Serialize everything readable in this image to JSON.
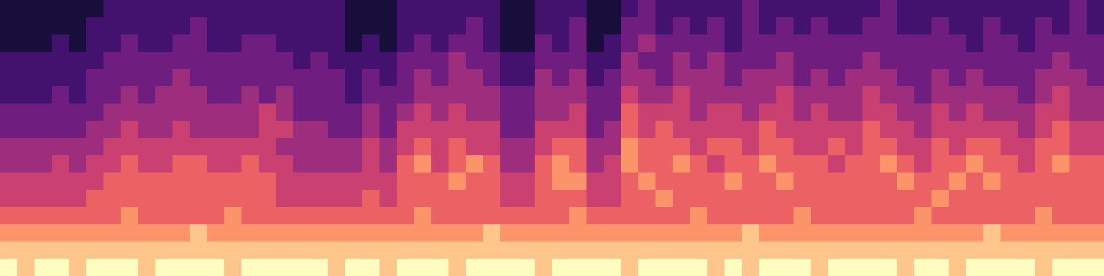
{
  "chart_data": {
    "type": "heatmap",
    "tick_labels": false,
    "color_range": [
      0,
      9
    ],
    "cells": [
      [
        1,
        1,
        1,
        1,
        1,
        1,
        2,
        2,
        2,
        2,
        2,
        2,
        2,
        2,
        2,
        2,
        2,
        2,
        2,
        2,
        1,
        1,
        1,
        2,
        2,
        2,
        2,
        2,
        2,
        1,
        1,
        2,
        2,
        2,
        1,
        1,
        2,
        3,
        2,
        2,
        2,
        2,
        2,
        3,
        2,
        2,
        2,
        2,
        2,
        2,
        2,
        3,
        2,
        2,
        2,
        2,
        2,
        2,
        2,
        2,
        2,
        2,
        3,
        2
      ],
      [
        1,
        1,
        1,
        1,
        1,
        2,
        2,
        2,
        2,
        2,
        2,
        3,
        2,
        2,
        2,
        2,
        2,
        2,
        2,
        2,
        1,
        1,
        1,
        2,
        2,
        2,
        2,
        3,
        2,
        1,
        1,
        2,
        2,
        3,
        1,
        1,
        3,
        3,
        2,
        3,
        2,
        3,
        2,
        3,
        2,
        3,
        2,
        3,
        2,
        2,
        3,
        3,
        2,
        2,
        3,
        2,
        2,
        3,
        2,
        2,
        3,
        2,
        3,
        2
      ],
      [
        1,
        1,
        1,
        2,
        1,
        2,
        2,
        3,
        2,
        2,
        3,
        3,
        2,
        2,
        3,
        3,
        2,
        2,
        2,
        2,
        1,
        2,
        1,
        2,
        3,
        2,
        3,
        3,
        2,
        1,
        1,
        3,
        2,
        3,
        1,
        2,
        3,
        4,
        3,
        3,
        3,
        3,
        2,
        3,
        3,
        3,
        3,
        3,
        3,
        3,
        3,
        3,
        3,
        3,
        3,
        3,
        2,
        3,
        3,
        2,
        3,
        3,
        3,
        3
      ],
      [
        2,
        2,
        2,
        2,
        2,
        2,
        3,
        3,
        3,
        3,
        3,
        3,
        3,
        3,
        3,
        3,
        3,
        2,
        3,
        2,
        2,
        2,
        2,
        3,
        3,
        3,
        4,
        3,
        3,
        2,
        2,
        3,
        3,
        3,
        2,
        2,
        4,
        3,
        3,
        4,
        3,
        4,
        3,
        3,
        3,
        4,
        3,
        3,
        3,
        3,
        4,
        3,
        3,
        3,
        3,
        3,
        3,
        3,
        3,
        3,
        3,
        4,
        3,
        3
      ],
      [
        2,
        2,
        2,
        2,
        2,
        3,
        3,
        3,
        3,
        3,
        4,
        3,
        3,
        3,
        3,
        3,
        3,
        3,
        3,
        3,
        2,
        3,
        2,
        3,
        4,
        3,
        4,
        4,
        3,
        2,
        2,
        4,
        3,
        4,
        2,
        3,
        4,
        4,
        3,
        4,
        4,
        4,
        3,
        4,
        4,
        4,
        3,
        4,
        3,
        4,
        4,
        4,
        3,
        3,
        4,
        3,
        4,
        3,
        3,
        3,
        4,
        4,
        4,
        3
      ],
      [
        2,
        2,
        2,
        3,
        2,
        3,
        3,
        4,
        3,
        4,
        4,
        4,
        3,
        3,
        4,
        3,
        4,
        3,
        3,
        3,
        2,
        3,
        3,
        3,
        4,
        4,
        4,
        4,
        4,
        3,
        3,
        4,
        4,
        4,
        3,
        3,
        5,
        4,
        4,
        5,
        4,
        4,
        4,
        4,
        4,
        5,
        4,
        4,
        4,
        4,
        5,
        4,
        4,
        3,
        4,
        4,
        4,
        4,
        4,
        3,
        4,
        5,
        4,
        4
      ],
      [
        3,
        3,
        3,
        3,
        3,
        3,
        4,
        4,
        4,
        4,
        4,
        4,
        4,
        4,
        4,
        5,
        4,
        3,
        3,
        3,
        3,
        4,
        3,
        4,
        5,
        4,
        5,
        4,
        4,
        3,
        3,
        4,
        4,
        5,
        3,
        3,
        6,
        5,
        5,
        5,
        4,
        5,
        5,
        4,
        5,
        5,
        4,
        5,
        4,
        4,
        5,
        5,
        4,
        4,
        5,
        4,
        5,
        4,
        4,
        4,
        5,
        5,
        4,
        4
      ],
      [
        3,
        3,
        3,
        3,
        3,
        4,
        4,
        5,
        4,
        4,
        5,
        4,
        4,
        4,
        4,
        5,
        5,
        4,
        4,
        3,
        3,
        4,
        3,
        5,
        5,
        5,
        5,
        5,
        5,
        3,
        3,
        5,
        5,
        5,
        3,
        4,
        6,
        5,
        6,
        5,
        5,
        5,
        5,
        5,
        6,
        5,
        5,
        5,
        5,
        5,
        6,
        5,
        5,
        4,
        5,
        5,
        5,
        5,
        5,
        4,
        5,
        6,
        5,
        5
      ],
      [
        4,
        4,
        4,
        4,
        4,
        4,
        5,
        5,
        5,
        5,
        5,
        5,
        5,
        5,
        5,
        5,
        4,
        4,
        4,
        4,
        4,
        5,
        4,
        5,
        6,
        5,
        6,
        5,
        5,
        4,
        4,
        5,
        6,
        6,
        4,
        4,
        7,
        6,
        6,
        6,
        5,
        6,
        6,
        5,
        6,
        6,
        5,
        5,
        6,
        5,
        6,
        6,
        5,
        5,
        6,
        5,
        6,
        6,
        5,
        5,
        6,
        6,
        5,
        5
      ],
      [
        4,
        4,
        4,
        5,
        4,
        5,
        5,
        6,
        5,
        5,
        6,
        6,
        5,
        5,
        6,
        5,
        5,
        4,
        4,
        4,
        4,
        5,
        4,
        6,
        7,
        5,
        6,
        7,
        6,
        4,
        4,
        6,
        7,
        6,
        4,
        5,
        7,
        6,
        6,
        7,
        6,
        5,
        6,
        6,
        7,
        6,
        6,
        6,
        5,
        6,
        6,
        7,
        6,
        5,
        6,
        6,
        7,
        6,
        6,
        5,
        6,
        7,
        6,
        6
      ],
      [
        5,
        5,
        5,
        5,
        5,
        5,
        6,
        6,
        6,
        6,
        6,
        6,
        6,
        6,
        6,
        6,
        5,
        5,
        5,
        5,
        5,
        5,
        5,
        6,
        6,
        6,
        7,
        6,
        6,
        5,
        5,
        6,
        7,
        7,
        5,
        5,
        6,
        7,
        6,
        6,
        6,
        6,
        7,
        6,
        6,
        7,
        6,
        6,
        6,
        6,
        6,
        6,
        7,
        6,
        6,
        7,
        6,
        7,
        6,
        6,
        6,
        6,
        6,
        6
      ],
      [
        5,
        5,
        5,
        5,
        5,
        6,
        6,
        6,
        6,
        6,
        6,
        6,
        6,
        6,
        6,
        6,
        5,
        5,
        5,
        5,
        5,
        6,
        5,
        6,
        6,
        6,
        6,
        6,
        6,
        5,
        5,
        6,
        6,
        6,
        5,
        5,
        6,
        6,
        7,
        6,
        6,
        6,
        6,
        6,
        6,
        6,
        6,
        6,
        6,
        6,
        6,
        6,
        6,
        6,
        7,
        6,
        6,
        6,
        6,
        6,
        6,
        6,
        6,
        6
      ],
      [
        6,
        6,
        6,
        6,
        6,
        6,
        6,
        7,
        6,
        6,
        6,
        6,
        6,
        7,
        6,
        6,
        6,
        6,
        6,
        6,
        6,
        6,
        6,
        6,
        7,
        6,
        6,
        6,
        6,
        6,
        6,
        6,
        6,
        7,
        6,
        6,
        6,
        6,
        6,
        6,
        7,
        6,
        6,
        6,
        6,
        6,
        7,
        6,
        6,
        6,
        6,
        6,
        6,
        7,
        6,
        6,
        6,
        6,
        6,
        6,
        7,
        6,
        6,
        6
      ],
      [
        7,
        7,
        7,
        7,
        7,
        7,
        7,
        7,
        7,
        7,
        7,
        8,
        7,
        7,
        7,
        7,
        7,
        7,
        7,
        7,
        7,
        7,
        7,
        7,
        7,
        7,
        7,
        7,
        8,
        7,
        7,
        7,
        7,
        7,
        7,
        7,
        7,
        7,
        7,
        7,
        7,
        7,
        7,
        8,
        7,
        7,
        7,
        7,
        7,
        7,
        7,
        7,
        7,
        7,
        7,
        7,
        7,
        8,
        7,
        7,
        7,
        7,
        7,
        7
      ],
      [
        8,
        8,
        8,
        8,
        8,
        8,
        8,
        8,
        8,
        8,
        8,
        8,
        8,
        8,
        8,
        8,
        8,
        8,
        8,
        8,
        8,
        8,
        8,
        8,
        8,
        8,
        8,
        8,
        8,
        8,
        8,
        8,
        8,
        8,
        8,
        8,
        8,
        8,
        8,
        8,
        8,
        8,
        8,
        8,
        8,
        8,
        8,
        8,
        8,
        8,
        8,
        8,
        8,
        8,
        8,
        8,
        8,
        8,
        8,
        8,
        8,
        8,
        8,
        8
      ],
      [
        9,
        8,
        9,
        9,
        8,
        9,
        9,
        9,
        8,
        9,
        9,
        9,
        9,
        8,
        9,
        9,
        9,
        9,
        9,
        8,
        9,
        9,
        8,
        9,
        9,
        9,
        8,
        9,
        9,
        9,
        9,
        8,
        9,
        9,
        9,
        9,
        8,
        9,
        9,
        9,
        9,
        8,
        9,
        8,
        9,
        9,
        9,
        8,
        9,
        9,
        9,
        9,
        8,
        9,
        9,
        8,
        9,
        9,
        9,
        9,
        8,
        9,
        9,
        9
      ]
    ]
  }
}
